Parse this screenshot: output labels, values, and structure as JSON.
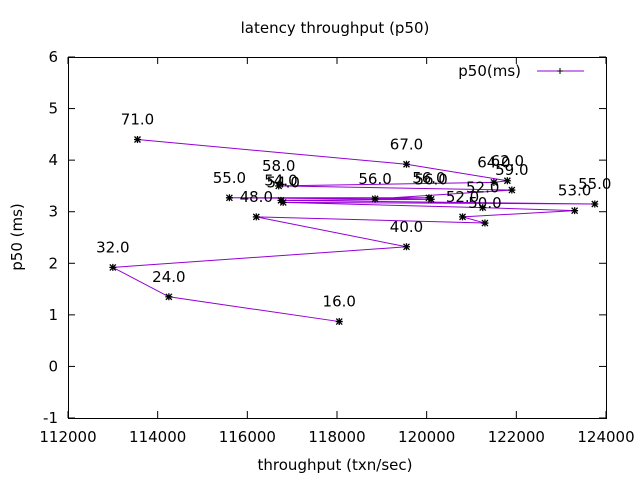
{
  "chart_data": {
    "type": "line",
    "title": "latency throughput (p50)",
    "xlabel": "throughput (txn/sec)",
    "ylabel": "p50 (ms)",
    "xlim": [
      112000,
      124000
    ],
    "ylim": [
      -1,
      6
    ],
    "xticks": [
      "112000",
      "114000",
      "116000",
      "118000",
      "120000",
      "122000",
      "124000"
    ],
    "yticks": [
      "-1",
      "0",
      "1",
      "2",
      "3",
      "4",
      "5",
      "6"
    ],
    "grid": false,
    "legend_position": "top-right",
    "series": [
      {
        "name": "p50(ms)",
        "color": "#9400d3",
        "point_color": "#000000",
        "points": [
          {
            "x": 118050,
            "y": 0.87,
            "label": "16.0"
          },
          {
            "x": 114250,
            "y": 1.35,
            "label": "24.0"
          },
          {
            "x": 113000,
            "y": 1.92,
            "label": "32.0"
          },
          {
            "x": 119550,
            "y": 2.32,
            "label": "40.0"
          },
          {
            "x": 116200,
            "y": 2.9,
            "label": "48.0"
          },
          {
            "x": 121300,
            "y": 2.78,
            "label": "50.0"
          },
          {
            "x": 120800,
            "y": 2.9,
            "label": "52.0"
          },
          {
            "x": 123300,
            "y": 3.02,
            "label": "53.0"
          },
          {
            "x": 121250,
            "y": 3.08,
            "label": "52.0"
          },
          {
            "x": 116800,
            "y": 3.18,
            "label": "54.0"
          },
          {
            "x": 123750,
            "y": 3.15,
            "label": "55.0"
          },
          {
            "x": 116750,
            "y": 3.22,
            "label": "54.0"
          },
          {
            "x": 120100,
            "y": 3.24,
            "label": "56.0"
          },
          {
            "x": 115600,
            "y": 3.27,
            "label": "55.0"
          },
          {
            "x": 120050,
            "y": 3.27,
            "label": "56.0"
          },
          {
            "x": 118850,
            "y": 3.25,
            "label": "56.0"
          },
          {
            "x": 121900,
            "y": 3.42,
            "label": "59.0"
          },
          {
            "x": 116700,
            "y": 3.5,
            "label": "58.0"
          },
          {
            "x": 121500,
            "y": 3.57,
            "label": "64.0"
          },
          {
            "x": 121800,
            "y": 3.6,
            "label": "62.0"
          },
          {
            "x": 119550,
            "y": 3.92,
            "label": "67.0"
          },
          {
            "x": 113550,
            "y": 4.4,
            "label": "71.0"
          }
        ]
      }
    ]
  }
}
